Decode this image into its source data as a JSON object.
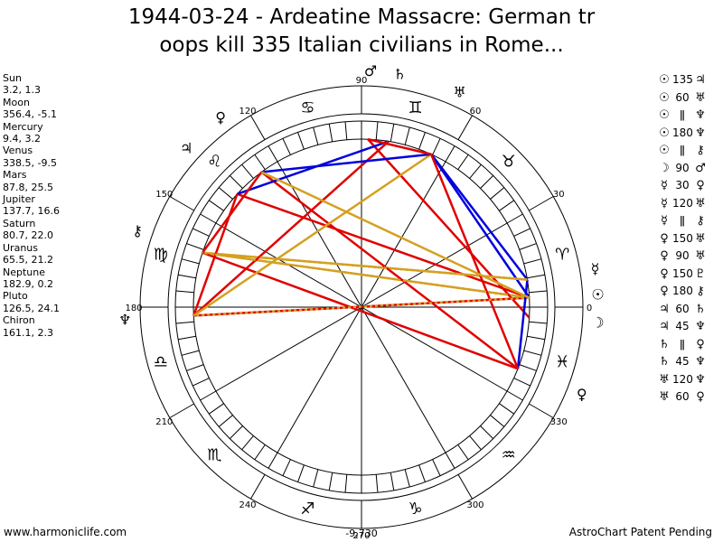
{
  "title_line1": "1944-03-24 - Ardeatine Massacre: German tr",
  "title_line2": "oops kill 335 Italian civilians in Rome...",
  "planets": [
    {
      "name": "Sun",
      "pos": "3.2, 1.3"
    },
    {
      "name": "Moon",
      "pos": "356.4, -5.1"
    },
    {
      "name": "Mercury",
      "pos": "9.4, 3.2"
    },
    {
      "name": "Venus",
      "pos": "338.5, -9.5"
    },
    {
      "name": "Mars",
      "pos": "87.8, 25.5"
    },
    {
      "name": "Jupiter",
      "pos": "137.7, 16.6"
    },
    {
      "name": "Saturn",
      "pos": "80.7, 22.0"
    },
    {
      "name": "Uranus",
      "pos": "65.5, 21.2"
    },
    {
      "name": "Neptune",
      "pos": "182.9, 0.2"
    },
    {
      "name": "Pluto",
      "pos": "126.5, 24.1"
    },
    {
      "name": "Chiron",
      "pos": "161.1, 2.3"
    }
  ],
  "aspects": [
    {
      "a": "☉",
      "ang": "135",
      "b": "♃"
    },
    {
      "a": "☉",
      "ang": "60",
      "b": "♅"
    },
    {
      "a": "☉",
      "ang": "ǁ",
      "b": "♆"
    },
    {
      "a": "☉",
      "ang": "180",
      "b": "♆"
    },
    {
      "a": "☉",
      "ang": "ǁ",
      "b": "⚷"
    },
    {
      "a": "☽",
      "ang": "90",
      "b": "♂"
    },
    {
      "a": "☿",
      "ang": "30",
      "b": "♀"
    },
    {
      "a": "☿",
      "ang": "120",
      "b": "♅"
    },
    {
      "a": "☿",
      "ang": "ǁ",
      "b": "⚷"
    },
    {
      "a": "♀",
      "ang": "150",
      "b": "♅"
    },
    {
      "a": "♀",
      "ang": "90",
      "b": "♅"
    },
    {
      "a": "♀",
      "ang": "150",
      "b": "♇"
    },
    {
      "a": "♀",
      "ang": "180",
      "b": "⚷"
    },
    {
      "a": "♃",
      "ang": "60",
      "b": "♄"
    },
    {
      "a": "♃",
      "ang": "45",
      "b": "♆"
    },
    {
      "a": "♄",
      "ang": "ǁ",
      "b": "♀"
    },
    {
      "a": "♄",
      "ang": "45",
      "b": "♆"
    },
    {
      "a": "♅",
      "ang": "120",
      "b": "♆"
    },
    {
      "a": "♅",
      "ang": "60",
      "b": "♀"
    }
  ],
  "wheel": {
    "degree_labels": [
      "0",
      "30",
      "60",
      "90",
      "120",
      "150",
      "180",
      "210",
      "240",
      "270",
      "300",
      "330"
    ],
    "bottom_value": "-9,730",
    "sign_glyphs": [
      "♈",
      "♉",
      "♊",
      "♋",
      "♌",
      "♍",
      "♎",
      "♏",
      "♐",
      "♑",
      "♒",
      "♓"
    ],
    "planet_glyphs": [
      {
        "name": "Sun",
        "glyph": "☉",
        "lon": 3.2
      },
      {
        "name": "Moon",
        "glyph": "☽",
        "lon": 356.4
      },
      {
        "name": "Mercury",
        "glyph": "☿",
        "lon": 9.4
      },
      {
        "name": "Venus",
        "glyph": "♀",
        "lon": 338.5
      },
      {
        "name": "Mars",
        "glyph": "♂",
        "lon": 87.8
      },
      {
        "name": "Jupiter",
        "glyph": "♃",
        "lon": 137.7
      },
      {
        "name": "Saturn",
        "glyph": "♄",
        "lon": 80.7
      },
      {
        "name": "Uranus",
        "glyph": "♅",
        "lon": 65.5
      },
      {
        "name": "Neptune",
        "glyph": "♆",
        "lon": 182.9
      },
      {
        "name": "Pluto",
        "glyph": "♀",
        "lon": 126.5
      },
      {
        "name": "Chiron",
        "glyph": "⚷",
        "lon": 161.1
      }
    ],
    "colors": {
      "red": "#e00000",
      "blue": "#0000dd",
      "gold": "#d4a020"
    }
  },
  "footer_left": "www.harmoniclife.com",
  "footer_right": "AstroChart Patent Pending"
}
